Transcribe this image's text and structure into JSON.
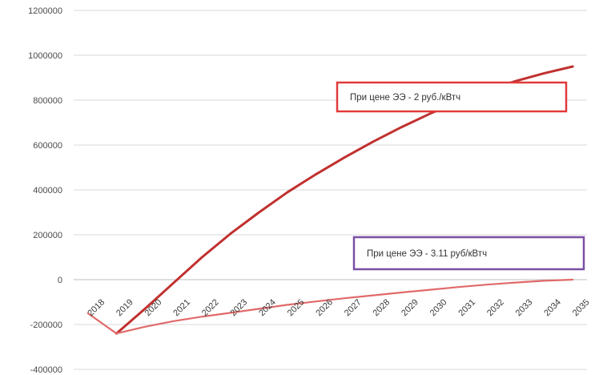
{
  "chart_data": {
    "type": "line",
    "x": [
      "2018",
      "2019",
      "2020",
      "2021",
      "2022",
      "2023",
      "2024",
      "2025",
      "2026",
      "2027",
      "2028",
      "2029",
      "2030",
      "2031",
      "2032",
      "2033",
      "2034",
      "2035"
    ],
    "ylim": [
      -400000,
      1200000
    ],
    "yticks": [
      -400000,
      -200000,
      0,
      200000,
      400000,
      600000,
      800000,
      1000000,
      1200000
    ],
    "ytick_labels": [
      "-400000",
      "-200000",
      "0",
      "200000",
      "400000",
      "600000",
      "800000",
      "1000000",
      "1200000"
    ],
    "grid": true,
    "series": [
      {
        "color": "#c0312f",
        "values": [
          null,
          -240000,
          -130000,
          -15000,
          100000,
          205000,
          300000,
          390000,
          470000,
          545000,
          615000,
          680000,
          740000,
          795000,
          845000,
          885000,
          920000,
          950000
        ]
      },
      {
        "color": "#e06a6a",
        "values": [
          -150000,
          -240000,
          -210000,
          -185000,
          -165000,
          -148000,
          -130000,
          -112000,
          -97000,
          -83000,
          -70000,
          -57000,
          -45000,
          -33000,
          -22000,
          -13000,
          -5000,
          0
        ]
      }
    ],
    "annotations": [
      {
        "id": "anno-2rub",
        "text": "При цене ЭЭ - 2 руб./кВтч",
        "border_color": "#e03a3a"
      },
      {
        "id": "anno-311rub",
        "text": "При цене ЭЭ - 3.11 руб/кВтч",
        "border_color": "#7b4fa6"
      }
    ]
  }
}
